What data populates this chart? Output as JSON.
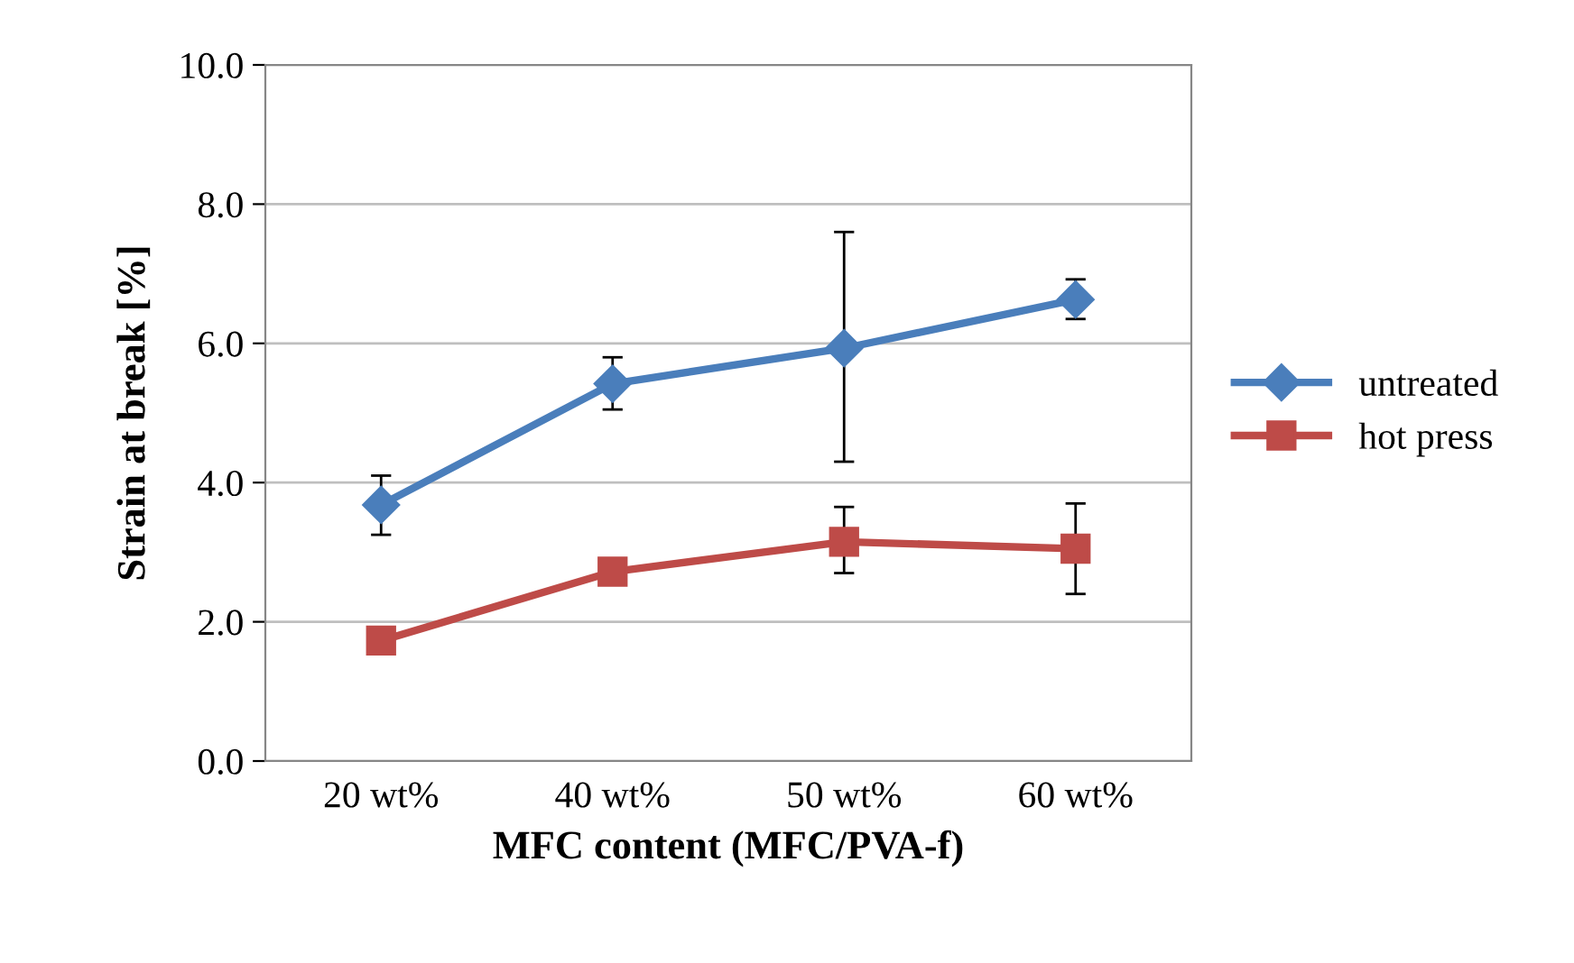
{
  "chart_data": {
    "type": "line",
    "xlabel": "MFC content (MFC/PVA-f)",
    "ylabel": "Strain at break [%]",
    "categories": [
      "20 wt%",
      "40 wt%",
      "50 wt%",
      "60 wt%"
    ],
    "series": [
      {
        "name": "untreated",
        "color": "#4a7ebb",
        "marker": "diamond",
        "values": [
          3.68,
          5.42,
          5.93,
          6.63
        ],
        "errors": [
          [
            3.25,
            4.1
          ],
          [
            5.05,
            5.8
          ],
          [
            4.3,
            7.6
          ],
          [
            6.35,
            6.92
          ]
        ]
      },
      {
        "name": "hot press",
        "color": "#be4b48",
        "marker": "square",
        "values": [
          1.73,
          2.72,
          3.15,
          3.05
        ],
        "errors": [
          null,
          null,
          [
            2.7,
            3.65
          ],
          [
            2.4,
            3.7
          ]
        ]
      }
    ],
    "ylim": [
      0,
      10
    ],
    "yticks": [
      {
        "value": 0,
        "label": "0.0"
      },
      {
        "value": 2,
        "label": "2.0"
      },
      {
        "value": 4,
        "label": "4.0"
      },
      {
        "value": 6,
        "label": "6.0"
      },
      {
        "value": 8,
        "label": "8.0"
      },
      {
        "value": 10,
        "label": "10.0"
      }
    ],
    "grid": "y",
    "legend": "right",
    "line_style": "solid"
  }
}
